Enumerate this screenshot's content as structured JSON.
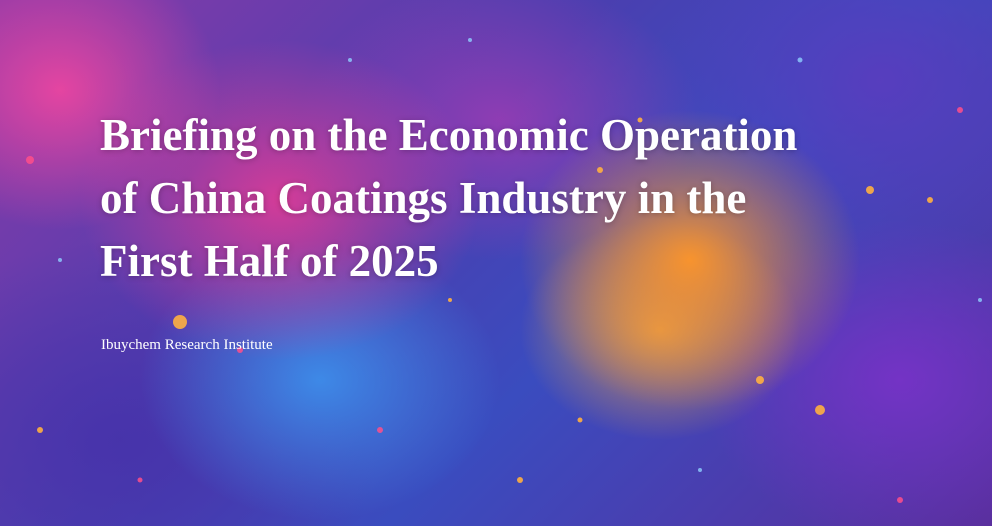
{
  "banner": {
    "title_lines": [
      "Briefing on the Economic Operation",
      "of China Coatings Industry in the",
      "First Half of 2025"
    ],
    "subtitle": "Ibuychem Research Institute"
  }
}
